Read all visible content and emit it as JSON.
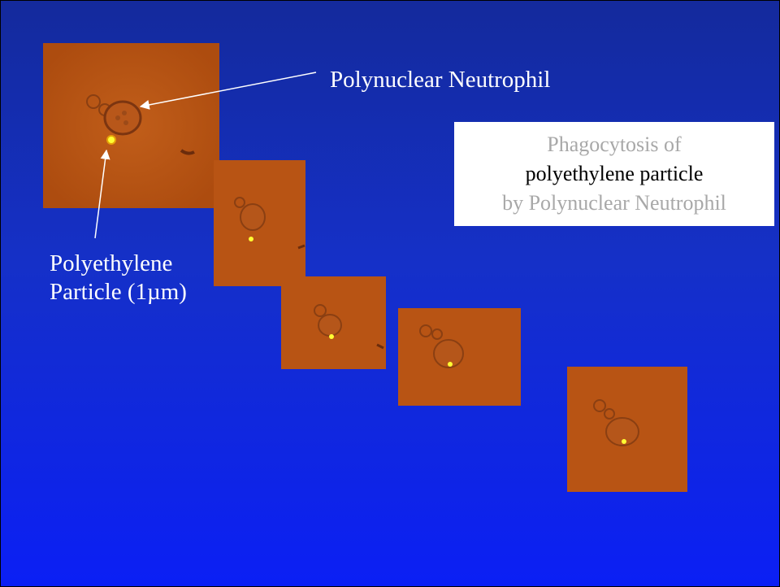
{
  "labels": {
    "neutrophil": "Polynuclear Neutrophil",
    "particle_line1": "Polyethylene",
    "particle_line2": "Particle (1µm)"
  },
  "title_box": {
    "line1": "Phagocytosis of",
    "line2": "polyethylene particle",
    "line3": "by Polynuclear Neutrophil"
  },
  "colors": {
    "background_top": "#142a9c",
    "background_bottom": "#0b1ff5",
    "micrograph": "#b85312",
    "particle": "#ffff33",
    "title_gray": "#a8a8a8",
    "title_black": "#000000"
  }
}
